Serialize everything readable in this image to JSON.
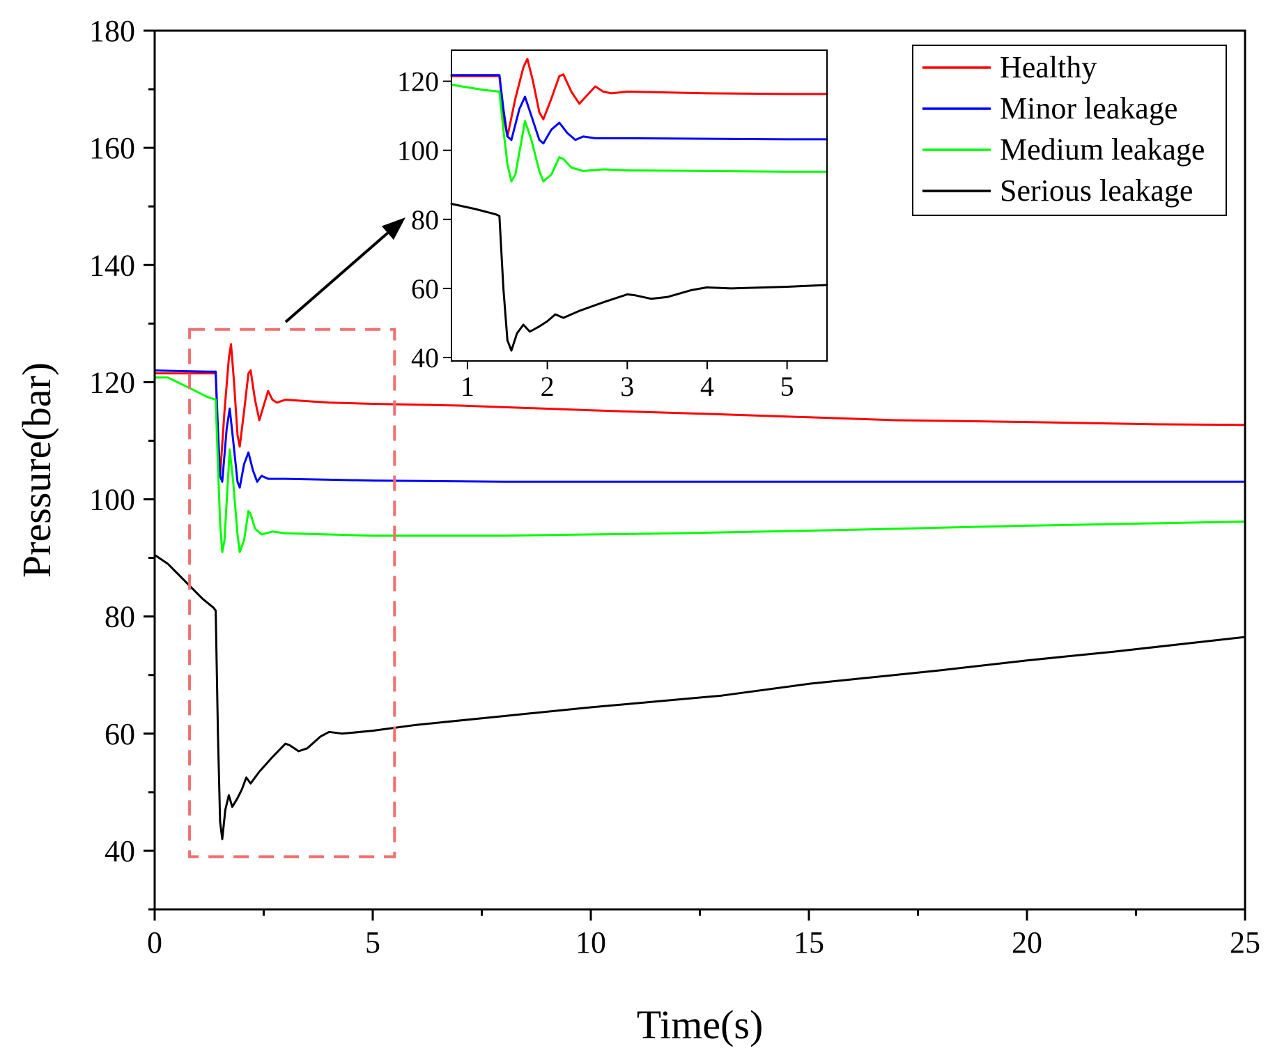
{
  "chart_data": [
    {
      "id": "main",
      "type": "line",
      "title": "",
      "xlabel": "Time(s)",
      "ylabel": "Pressure(bar)",
      "xlim": [
        0,
        25
      ],
      "ylim": [
        30,
        180
      ],
      "xticks": [
        0,
        5,
        10,
        15,
        20,
        25
      ],
      "yticks": [
        40,
        60,
        80,
        100,
        120,
        140,
        160,
        180
      ],
      "grid": false,
      "legend_position": "top-right",
      "zoom_box": {
        "x": [
          0.8,
          5.5
        ],
        "y": [
          39,
          129
        ]
      },
      "series": [
        {
          "name": "Healthy",
          "color": "#ff0000",
          "points": [
            [
              0,
              121.5
            ],
            [
              1.2,
              121.5
            ],
            [
              1.4,
              121.5
            ],
            [
              1.45,
              110
            ],
            [
              1.5,
              104
            ],
            [
              1.6,
              115
            ],
            [
              1.7,
              124
            ],
            [
              1.75,
              126.5
            ],
            [
              1.82,
              120
            ],
            [
              1.9,
              111
            ],
            [
              1.95,
              109
            ],
            [
              2.05,
              115
            ],
            [
              2.15,
              121.5
            ],
            [
              2.2,
              122
            ],
            [
              2.3,
              117
            ],
            [
              2.4,
              113.5
            ],
            [
              2.5,
              116
            ],
            [
              2.6,
              118.5
            ],
            [
              2.7,
              117
            ],
            [
              2.8,
              116.5
            ],
            [
              3.0,
              117
            ],
            [
              4,
              116.5
            ],
            [
              5,
              116.3
            ],
            [
              7,
              116
            ],
            [
              10,
              115.2
            ],
            [
              13,
              114.5
            ],
            [
              15,
              114
            ],
            [
              17,
              113.5
            ],
            [
              20,
              113.2
            ],
            [
              23,
              112.8
            ],
            [
              25,
              112.7
            ]
          ]
        },
        {
          "name": "Minor leakage",
          "color": "#0000ff",
          "points": [
            [
              0,
              122
            ],
            [
              1.2,
              121.8
            ],
            [
              1.4,
              121.8
            ],
            [
              1.45,
              112
            ],
            [
              1.5,
              104
            ],
            [
              1.55,
              103
            ],
            [
              1.65,
              112
            ],
            [
              1.72,
              115.5
            ],
            [
              1.8,
              110
            ],
            [
              1.9,
              103
            ],
            [
              1.95,
              102
            ],
            [
              2.05,
              106
            ],
            [
              2.15,
              108
            ],
            [
              2.25,
              105
            ],
            [
              2.35,
              103
            ],
            [
              2.45,
              104
            ],
            [
              2.6,
              103.5
            ],
            [
              3,
              103.5
            ],
            [
              5,
              103.2
            ],
            [
              8,
              103
            ],
            [
              12,
              103
            ],
            [
              16,
              103
            ],
            [
              20,
              103
            ],
            [
              25,
              103
            ]
          ]
        },
        {
          "name": "Medium leakage",
          "color": "#00ff00",
          "points": [
            [
              0,
              120.8
            ],
            [
              0.3,
              120.8
            ],
            [
              0.8,
              119
            ],
            [
              1.2,
              117.5
            ],
            [
              1.4,
              117
            ],
            [
              1.45,
              106
            ],
            [
              1.5,
              96
            ],
            [
              1.55,
              91
            ],
            [
              1.6,
              93
            ],
            [
              1.67,
              102
            ],
            [
              1.72,
              108.5
            ],
            [
              1.8,
              103
            ],
            [
              1.9,
              94
            ],
            [
              1.95,
              91
            ],
            [
              2.05,
              93
            ],
            [
              2.15,
              98
            ],
            [
              2.2,
              97.5
            ],
            [
              2.3,
              95
            ],
            [
              2.45,
              94
            ],
            [
              2.7,
              94.5
            ],
            [
              3,
              94.2
            ],
            [
              4,
              94
            ],
            [
              5,
              93.8
            ],
            [
              8,
              93.8
            ],
            [
              12,
              94.2
            ],
            [
              16,
              94.8
            ],
            [
              20,
              95.5
            ],
            [
              25,
              96.2
            ]
          ]
        },
        {
          "name": "Serious leakage",
          "color": "#000000",
          "points": [
            [
              0,
              90.5
            ],
            [
              0.3,
              89
            ],
            [
              0.7,
              86
            ],
            [
              1.1,
              83
            ],
            [
              1.35,
              81.5
            ],
            [
              1.4,
              81
            ],
            [
              1.45,
              60
            ],
            [
              1.5,
              45
            ],
            [
              1.55,
              42
            ],
            [
              1.62,
              47
            ],
            [
              1.7,
              49.5
            ],
            [
              1.78,
              47.5
            ],
            [
              1.9,
              49
            ],
            [
              2.0,
              50.5
            ],
            [
              2.1,
              52.5
            ],
            [
              2.2,
              51.5
            ],
            [
              2.4,
              53.5
            ],
            [
              2.7,
              56
            ],
            [
              3.0,
              58.3
            ],
            [
              3.1,
              58
            ],
            [
              3.3,
              57
            ],
            [
              3.5,
              57.5
            ],
            [
              3.8,
              59.5
            ],
            [
              4.0,
              60.3
            ],
            [
              4.3,
              60
            ],
            [
              5.0,
              60.5
            ],
            [
              6,
              61.5
            ],
            [
              8,
              63
            ],
            [
              10,
              64.5
            ],
            [
              13,
              66.5
            ],
            [
              15,
              68.5
            ],
            [
              18,
              70.8
            ],
            [
              20,
              72.5
            ],
            [
              22,
              74
            ],
            [
              25,
              76.5
            ]
          ]
        }
      ]
    },
    {
      "id": "inset",
      "type": "line",
      "title": "",
      "xlabel": "",
      "ylabel": "",
      "xlim": [
        0.8,
        5.5
      ],
      "ylim": [
        39,
        129
      ],
      "xticks": [
        1,
        2,
        3,
        4,
        5
      ],
      "yticks": [
        40,
        60,
        80,
        100,
        120
      ],
      "grid": false,
      "series": [
        {
          "name": "Healthy",
          "color": "#ff0000",
          "points": [
            [
              0.8,
              121.5
            ],
            [
              1.2,
              121.5
            ],
            [
              1.4,
              121.5
            ],
            [
              1.45,
              110
            ],
            [
              1.5,
              104
            ],
            [
              1.6,
              115
            ],
            [
              1.7,
              124
            ],
            [
              1.75,
              126.5
            ],
            [
              1.82,
              120
            ],
            [
              1.9,
              111
            ],
            [
              1.95,
              109
            ],
            [
              2.05,
              115
            ],
            [
              2.15,
              121.5
            ],
            [
              2.2,
              122
            ],
            [
              2.3,
              117
            ],
            [
              2.4,
              113.5
            ],
            [
              2.5,
              116
            ],
            [
              2.6,
              118.5
            ],
            [
              2.7,
              117
            ],
            [
              2.8,
              116.5
            ],
            [
              3.0,
              117
            ],
            [
              4,
              116.5
            ],
            [
              5,
              116.3
            ],
            [
              5.5,
              116.3
            ]
          ]
        },
        {
          "name": "Minor leakage",
          "color": "#0000ff",
          "points": [
            [
              0.8,
              121.8
            ],
            [
              1.2,
              121.8
            ],
            [
              1.4,
              121.8
            ],
            [
              1.45,
              112
            ],
            [
              1.5,
              104
            ],
            [
              1.55,
              103
            ],
            [
              1.65,
              112
            ],
            [
              1.72,
              115.5
            ],
            [
              1.8,
              110
            ],
            [
              1.9,
              103
            ],
            [
              1.95,
              102
            ],
            [
              2.05,
              106
            ],
            [
              2.15,
              108
            ],
            [
              2.25,
              105
            ],
            [
              2.35,
              103
            ],
            [
              2.45,
              104
            ],
            [
              2.6,
              103.5
            ],
            [
              3,
              103.5
            ],
            [
              5,
              103.2
            ],
            [
              5.5,
              103.2
            ]
          ]
        },
        {
          "name": "Medium leakage",
          "color": "#00ff00",
          "points": [
            [
              0.8,
              119
            ],
            [
              1.2,
              117.5
            ],
            [
              1.4,
              117
            ],
            [
              1.45,
              106
            ],
            [
              1.5,
              96
            ],
            [
              1.55,
              91
            ],
            [
              1.6,
              93
            ],
            [
              1.67,
              102
            ],
            [
              1.72,
              108.5
            ],
            [
              1.8,
              103
            ],
            [
              1.9,
              94
            ],
            [
              1.95,
              91
            ],
            [
              2.05,
              93
            ],
            [
              2.15,
              98
            ],
            [
              2.2,
              97.5
            ],
            [
              2.3,
              95
            ],
            [
              2.45,
              94
            ],
            [
              2.7,
              94.5
            ],
            [
              3,
              94.2
            ],
            [
              4,
              94
            ],
            [
              5,
              93.8
            ],
            [
              5.5,
              93.8
            ]
          ]
        },
        {
          "name": "Serious leakage",
          "color": "#000000",
          "points": [
            [
              0.8,
              84.5
            ],
            [
              1.1,
              83
            ],
            [
              1.35,
              81.5
            ],
            [
              1.4,
              81
            ],
            [
              1.45,
              60
            ],
            [
              1.5,
              45
            ],
            [
              1.55,
              42
            ],
            [
              1.62,
              47
            ],
            [
              1.7,
              49.5
            ],
            [
              1.78,
              47.5
            ],
            [
              1.9,
              49
            ],
            [
              2.0,
              50.5
            ],
            [
              2.1,
              52.5
            ],
            [
              2.2,
              51.5
            ],
            [
              2.4,
              53.5
            ],
            [
              2.7,
              56
            ],
            [
              3.0,
              58.3
            ],
            [
              3.1,
              58
            ],
            [
              3.3,
              57
            ],
            [
              3.5,
              57.5
            ],
            [
              3.8,
              59.5
            ],
            [
              4.0,
              60.3
            ],
            [
              4.3,
              60
            ],
            [
              5.0,
              60.5
            ],
            [
              5.5,
              61
            ]
          ]
        }
      ]
    }
  ]
}
